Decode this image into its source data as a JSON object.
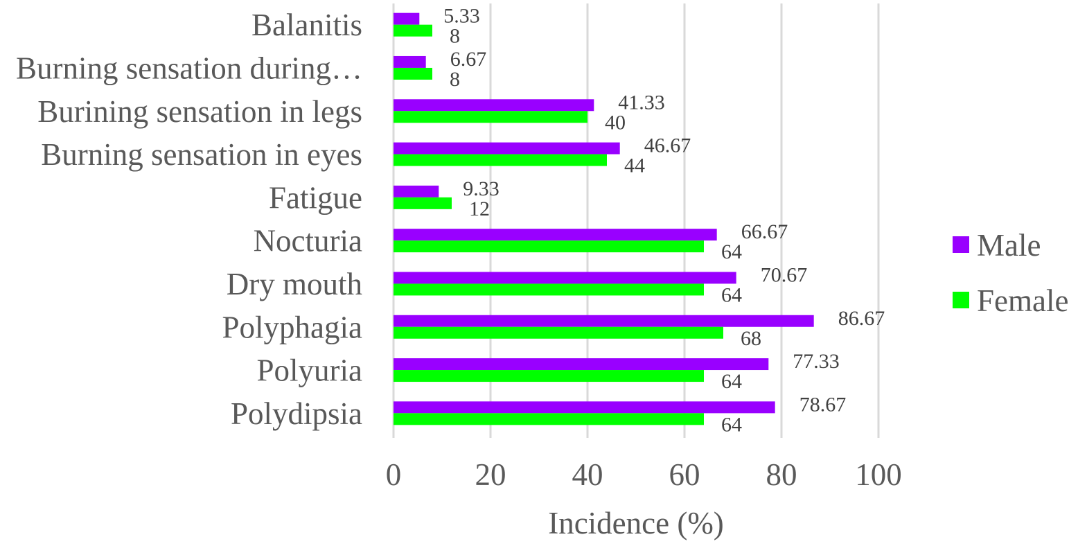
{
  "chart_data": {
    "type": "bar",
    "orientation": "horizontal",
    "categories": [
      "Balanitis",
      "Burning sensation during…",
      "Burining sensation in legs",
      "Burning sensation in eyes",
      "Fatigue",
      "Nocturia",
      "Dry mouth",
      "Polyphagia",
      "Polyuria",
      "Polydipsia"
    ],
    "series": [
      {
        "name": "Male",
        "color": "#9900ff",
        "values": [
          5.33,
          6.67,
          41.33,
          46.67,
          9.33,
          66.67,
          70.67,
          86.67,
          77.33,
          78.67
        ],
        "labels": [
          "5.33",
          "6.67",
          "41.33",
          "46.67",
          "9.33",
          "66.67",
          "70.67",
          "86.67",
          "77.33",
          "78.67"
        ]
      },
      {
        "name": "Female",
        "color": "#00ff00",
        "values": [
          8,
          8,
          40,
          44,
          12,
          64,
          64,
          68,
          64,
          64
        ],
        "labels": [
          "8",
          "8",
          "40",
          "44",
          "12",
          "64",
          "64",
          "68",
          "64",
          "64"
        ]
      }
    ],
    "xlabel": "Incidence (%)",
    "ylabel": "",
    "xlim": [
      0,
      100
    ],
    "xticks": [
      "0",
      "20",
      "40",
      "60",
      "80",
      "100"
    ],
    "grid": "vertical",
    "legend_position": "right"
  }
}
